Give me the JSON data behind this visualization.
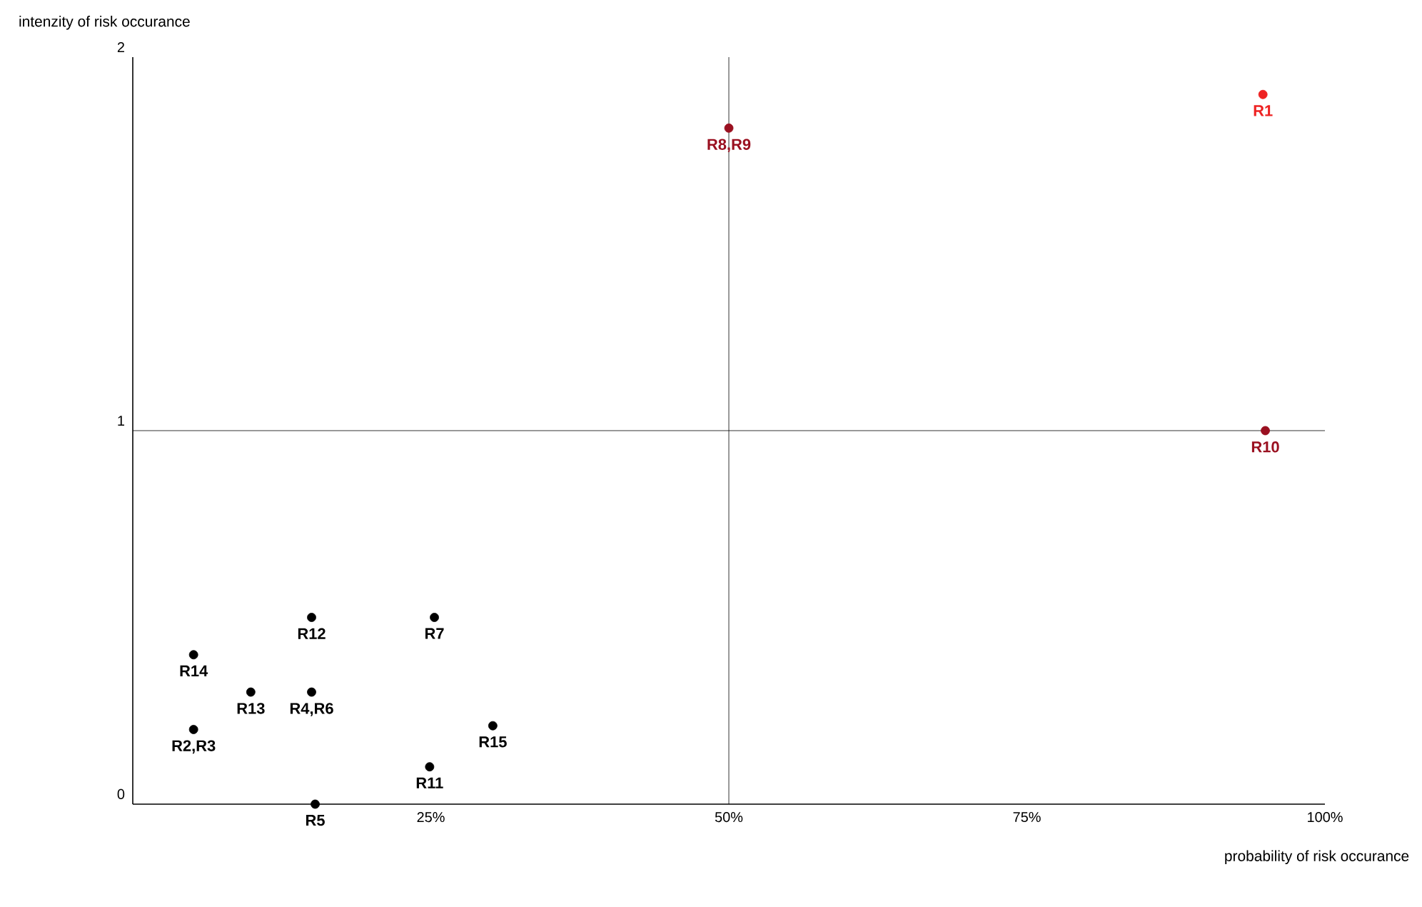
{
  "chart_data": {
    "type": "scatter",
    "xlabel": "probability of risk occurance",
    "ylabel": "intenzity of risk occurance",
    "x": [
      94.8,
      50,
      95,
      15,
      25.3,
      5.1,
      9.9,
      15,
      5.1,
      30.2,
      24.9,
      15.3
    ],
    "values": [
      1.9,
      1.81,
      1.0,
      0.5,
      0.5,
      0.4,
      0.3,
      0.3,
      0.2,
      0.21,
      0.1,
      0
    ],
    "colors": [
      "#ee2222",
      "#9a1020",
      "#9a1020",
      "#000000",
      "#000000",
      "#000000",
      "#000000",
      "#000000",
      "#000000",
      "#000000",
      "#000000",
      "#000000"
    ],
    "marker": "circle",
    "xlim": [
      0,
      100
    ],
    "ylim": [
      0,
      2
    ],
    "xticks": [
      {
        "value": 25,
        "label": "25%"
      },
      {
        "value": 50,
        "label": "50%"
      },
      {
        "value": 75,
        "label": "75%"
      },
      {
        "value": 100,
        "label": "100%"
      }
    ],
    "yticks": [
      0,
      1,
      2
    ],
    "ref_lines": [
      {
        "axis": "x",
        "value": 50,
        "color": "#000000"
      },
      {
        "axis": "y",
        "value": 1,
        "color": "#000000"
      }
    ],
    "annotations": [
      {
        "text": "R1",
        "x": 94.8,
        "y": 1.9
      },
      {
        "text": "R8,R9",
        "x": 50,
        "y": 1.81
      },
      {
        "text": "R10",
        "x": 95,
        "y": 1.0
      },
      {
        "text": "R12",
        "x": 15,
        "y": 0.5
      },
      {
        "text": "R7",
        "x": 25.3,
        "y": 0.5
      },
      {
        "text": "R14",
        "x": 5.1,
        "y": 0.4
      },
      {
        "text": "R13",
        "x": 9.9,
        "y": 0.3
      },
      {
        "text": "R4,R6",
        "x": 15,
        "y": 0.3
      },
      {
        "text": "R2,R3",
        "x": 5.1,
        "y": 0.2
      },
      {
        "text": "R15",
        "x": 30.2,
        "y": 0.21
      },
      {
        "text": "R11",
        "x": 24.9,
        "y": 0.1
      },
      {
        "text": "R5",
        "x": 15.3,
        "y": 0
      }
    ],
    "grid": false
  }
}
